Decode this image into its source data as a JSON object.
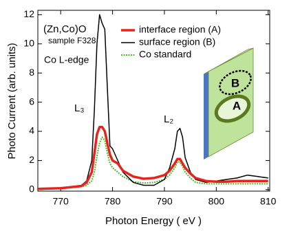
{
  "chart_data": {
    "type": "line",
    "x_label": "Photon Energy ( eV )",
    "y_label": "Photo Current (arb. units)",
    "annotations": [
      "(Zn,Co)O",
      "sample F328",
      "Co L-edge",
      "L₃",
      "L₂",
      "B",
      "A"
    ],
    "x": [
      765.5,
      770,
      774,
      775,
      776,
      776.5,
      777,
      777.5,
      778,
      778.5,
      779,
      779.5,
      780,
      781,
      782,
      784,
      786,
      788,
      790,
      791,
      792,
      792.5,
      793,
      793.5,
      794,
      795,
      796,
      798,
      800,
      802,
      804,
      806,
      808,
      810
    ],
    "series": [
      {
        "name": "interface region (A)",
        "color": "#e8231c",
        "width": 3.5,
        "dash": false,
        "values": [
          0.05,
          0.1,
          0.25,
          0.5,
          1.2,
          2.5,
          3.8,
          4.3,
          4.3,
          4.0,
          3.2,
          2.4,
          2.0,
          1.8,
          1.3,
          0.9,
          0.75,
          0.8,
          1.0,
          1.3,
          1.8,
          2.1,
          2.1,
          1.8,
          1.5,
          1.1,
          0.8,
          0.6,
          0.55,
          0.55,
          0.6,
          0.6,
          0.6,
          0.6
        ]
      },
      {
        "name": "surface region (B)",
        "color": "#000000",
        "width": 1.5,
        "dash": false,
        "values": [
          0.05,
          0.1,
          0.3,
          0.6,
          2.0,
          5.5,
          10.0,
          12.0,
          11.4,
          11.0,
          7.0,
          3.0,
          2.8,
          2.0,
          1.2,
          0.5,
          0.3,
          0.3,
          0.7,
          1.5,
          2.8,
          4.0,
          4.2,
          3.6,
          2.2,
          1.2,
          0.7,
          0.5,
          0.6,
          0.7,
          0.8,
          1.0,
          0.9,
          0.8
        ]
      },
      {
        "name": "Co standard",
        "color": "#4cb82a",
        "width": 2,
        "dash": true,
        "values": [
          0.05,
          0.1,
          0.2,
          0.3,
          0.6,
          1.2,
          2.3,
          3.2,
          3.6,
          3.4,
          2.5,
          1.8,
          1.5,
          1.2,
          0.9,
          0.55,
          0.45,
          0.5,
          0.7,
          1.0,
          1.5,
          1.9,
          1.9,
          1.6,
          1.2,
          0.8,
          0.5,
          0.4,
          0.4,
          0.4,
          0.4,
          0.4,
          0.4,
          0.4
        ]
      }
    ],
    "xlim": [
      765.6,
      810.3
    ],
    "ylim": [
      -0.1,
      12.3
    ],
    "xticks": [
      770,
      780,
      790,
      800,
      810
    ],
    "yticks": [
      0,
      2,
      4,
      6,
      8,
      10,
      12
    ],
    "legend": "upper right"
  }
}
